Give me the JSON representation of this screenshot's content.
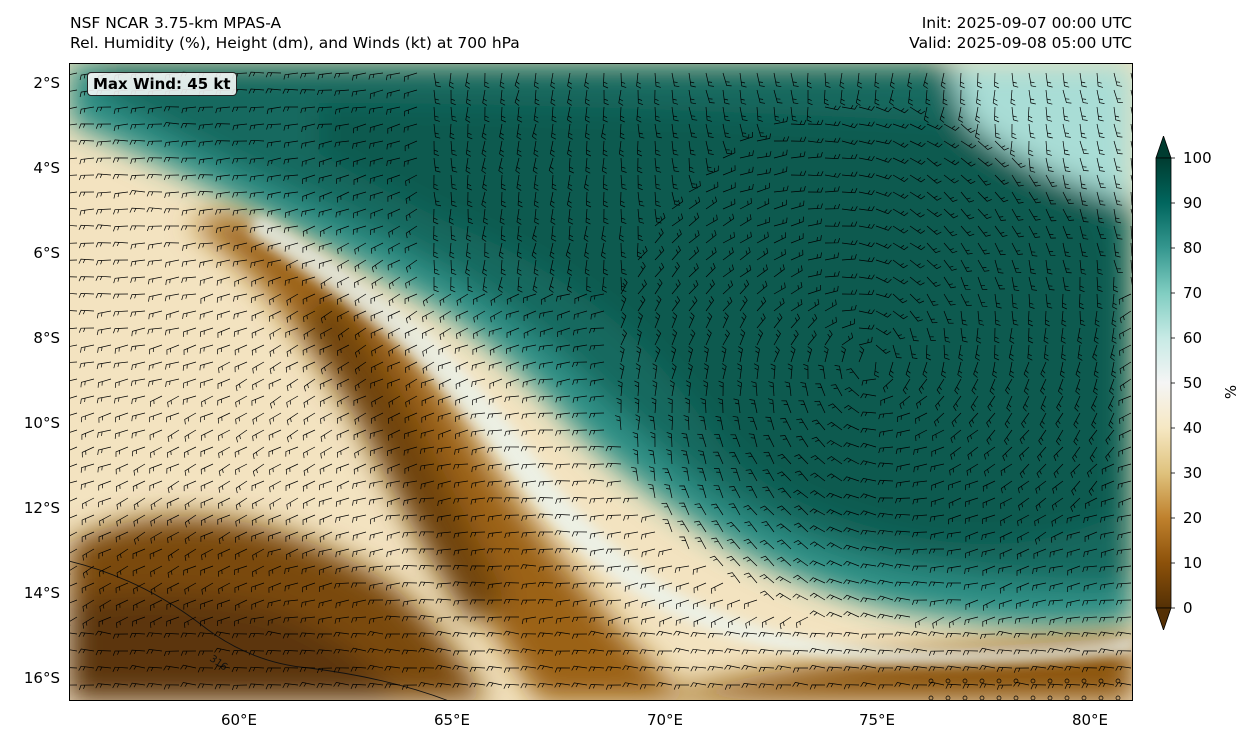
{
  "header": {
    "model": "NSF NCAR 3.75-km MPAS-A",
    "fields": "Rel. Humidity (%), Height (dm), and Winds (kt) at 700 hPa",
    "init": "Init: 2025-09-07 00:00 UTC",
    "valid": "Valid: 2025-09-08 05:00 UTC"
  },
  "badge": {
    "text": "Max Wind: 45 kt"
  },
  "map": {
    "lon_range": [
      56,
      81
    ],
    "lat_range": [
      -16.5,
      -1.5
    ],
    "lat_ticks": [
      {
        "value": -2,
        "label": "2°S"
      },
      {
        "value": -4,
        "label": "4°S"
      },
      {
        "value": -6,
        "label": "6°S"
      },
      {
        "value": -8,
        "label": "8°S"
      },
      {
        "value": -10,
        "label": "10°S"
      },
      {
        "value": -12,
        "label": "12°S"
      },
      {
        "value": -14,
        "label": "14°S"
      },
      {
        "value": -16,
        "label": "16°S"
      }
    ],
    "lon_ticks": [
      {
        "value": 60,
        "label": "60°E"
      },
      {
        "value": 65,
        "label": "65°E"
      },
      {
        "value": 70,
        "label": "70°E"
      },
      {
        "value": 75,
        "label": "75°E"
      },
      {
        "value": 80,
        "label": "80°E"
      }
    ],
    "contour_label": "316"
  },
  "colorbar": {
    "unit": "%",
    "range": [
      0,
      100
    ],
    "ticks": [
      "0",
      "10",
      "20",
      "30",
      "40",
      "50",
      "60",
      "70",
      "80",
      "90",
      "100"
    ],
    "colors": [
      "#543005",
      "#8c510a",
      "#bf812d",
      "#dfc27d",
      "#f6e8c3",
      "#f5f5f5",
      "#c7eae5",
      "#80cdc1",
      "#35978f",
      "#01665e",
      "#003c30"
    ]
  }
}
